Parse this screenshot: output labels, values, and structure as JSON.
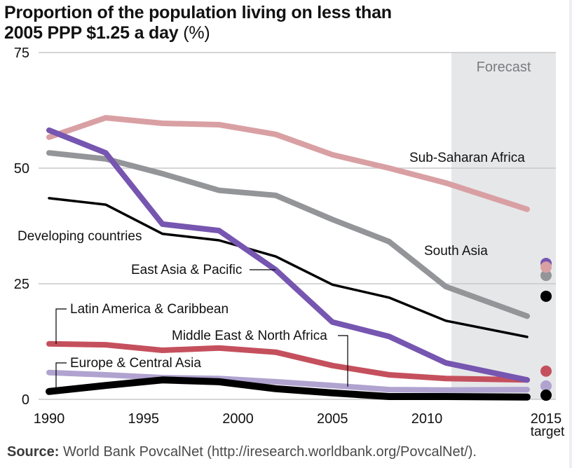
{
  "title": {
    "main": "Proportion of the population living on less than 2005 PPP $1.25 a day",
    "line1": "Proportion of the population living on less than",
    "line2": "2005 PPP $1.25 a day",
    "unit": "(%)"
  },
  "source": {
    "label": "Source:",
    "text": "World Bank PovcalNet (http://iresearch.worldbank.org/PovcalNet/)."
  },
  "chart_data": {
    "type": "line",
    "title": "Proportion of the population living on less than 2005 PPP $1.25 a day (%)",
    "xlabel": "",
    "ylabel": "%",
    "ylim": [
      0,
      75
    ],
    "xlim": [
      1990,
      2015
    ],
    "grid": true,
    "y_ticks": [
      "0",
      "25",
      "50",
      "75"
    ],
    "y_tick_values": [
      0,
      25,
      50,
      75
    ],
    "x_ticks": [
      "1990",
      "1995",
      "2000",
      "2005",
      "2010",
      "2015"
    ],
    "x_tick_values": [
      1990,
      1995,
      2000,
      2005,
      2010,
      2015
    ],
    "x_tick_sublabel": "target",
    "forecast": {
      "label": "Forecast",
      "from_year": 2011.3,
      "to_year": 2016
    },
    "x": [
      1990,
      1993,
      1996,
      1999,
      2002,
      2005,
      2008,
      2011,
      2015
    ],
    "series": [
      {
        "name": "Sub-Saharan Africa",
        "key": "ssa",
        "color": "#d9a0a4",
        "values": [
          56.7,
          60.9,
          59.7,
          59.4,
          57.3,
          52.9,
          50.0,
          46.8,
          41.1
        ],
        "target": 28.6
      },
      {
        "name": "South Asia",
        "key": "sa",
        "color": "#939598",
        "values": [
          53.3,
          52.0,
          48.8,
          45.2,
          44.1,
          38.9,
          34.1,
          24.4,
          18.0
        ],
        "target": 26.8
      },
      {
        "name": "East Asia & Pacific",
        "key": "eap",
        "color": "#7656b0",
        "values": [
          58.2,
          53.3,
          37.9,
          36.5,
          28.0,
          16.7,
          13.6,
          7.9,
          4.2
        ],
        "target": 29.4
      },
      {
        "name": "Developing countries",
        "key": "dev",
        "color": "#000000",
        "values": [
          43.5,
          42.1,
          35.8,
          34.4,
          30.9,
          24.8,
          22.0,
          17.0,
          13.5
        ],
        "target": 22.3
      },
      {
        "name": "Latin America & Caribbean",
        "key": "lac",
        "color": "#c5505d",
        "values": [
          12.0,
          11.8,
          10.6,
          11.1,
          10.2,
          7.3,
          5.3,
          4.5,
          4.2
        ],
        "target": 6.1
      },
      {
        "name": "Europe & Central Asia",
        "key": "eca",
        "color": "#b0a3d0",
        "values": [
          5.8,
          5.3,
          4.7,
          4.5,
          3.8,
          3.0,
          2.1,
          2.0,
          2.1
        ],
        "target": 2.9
      },
      {
        "name": "Middle East & North Africa",
        "key": "mena",
        "color": "#000000",
        "values": [
          1.7,
          3.0,
          4.2,
          3.8,
          2.3,
          1.4,
          0.6,
          0.6,
          0.5
        ],
        "target": 0.9
      }
    ],
    "annotations": [
      "Sub-Saharan Africa",
      "South Asia",
      "East Asia & Pacific",
      "Developing countries",
      "Latin America & Caribbean",
      "Middle East & North Africa",
      "Europe & Central Asia"
    ]
  }
}
